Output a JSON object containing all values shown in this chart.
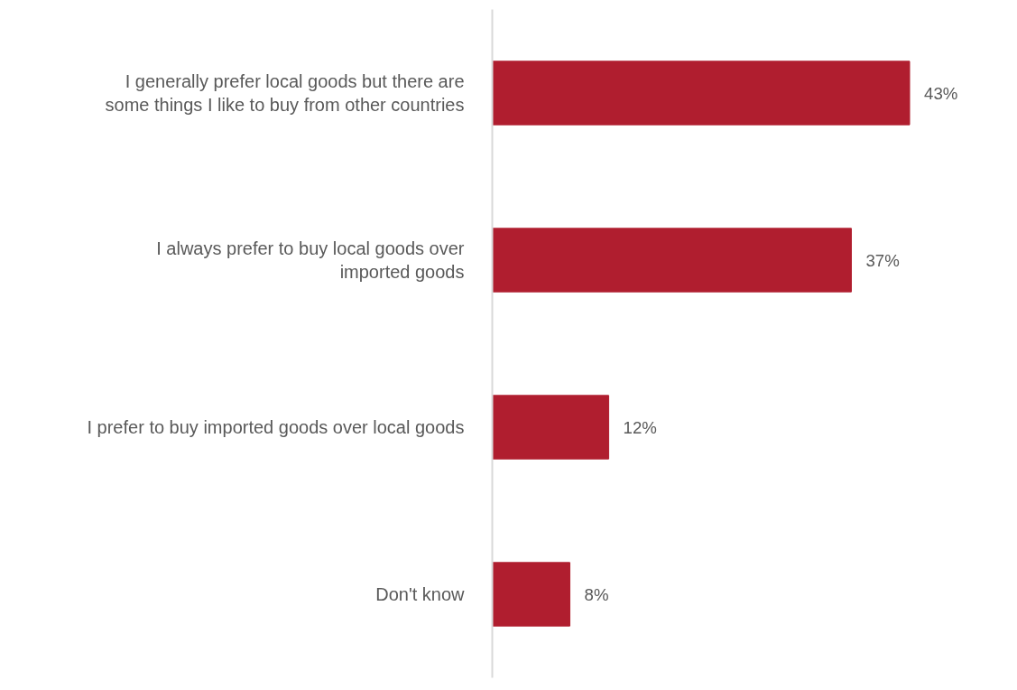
{
  "chart_data": {
    "type": "bar",
    "orientation": "horizontal",
    "categories": [
      "I generally prefer local goods but there are some things I like to buy from other countries",
      "I always prefer to buy local goods over imported goods",
      "I prefer to buy imported goods over local goods",
      "Don't know"
    ],
    "values": [
      43,
      37,
      12,
      8
    ],
    "value_labels": [
      "43%",
      "37%",
      "12%",
      "8%"
    ],
    "color": "#b01e2f",
    "grid": false
  }
}
